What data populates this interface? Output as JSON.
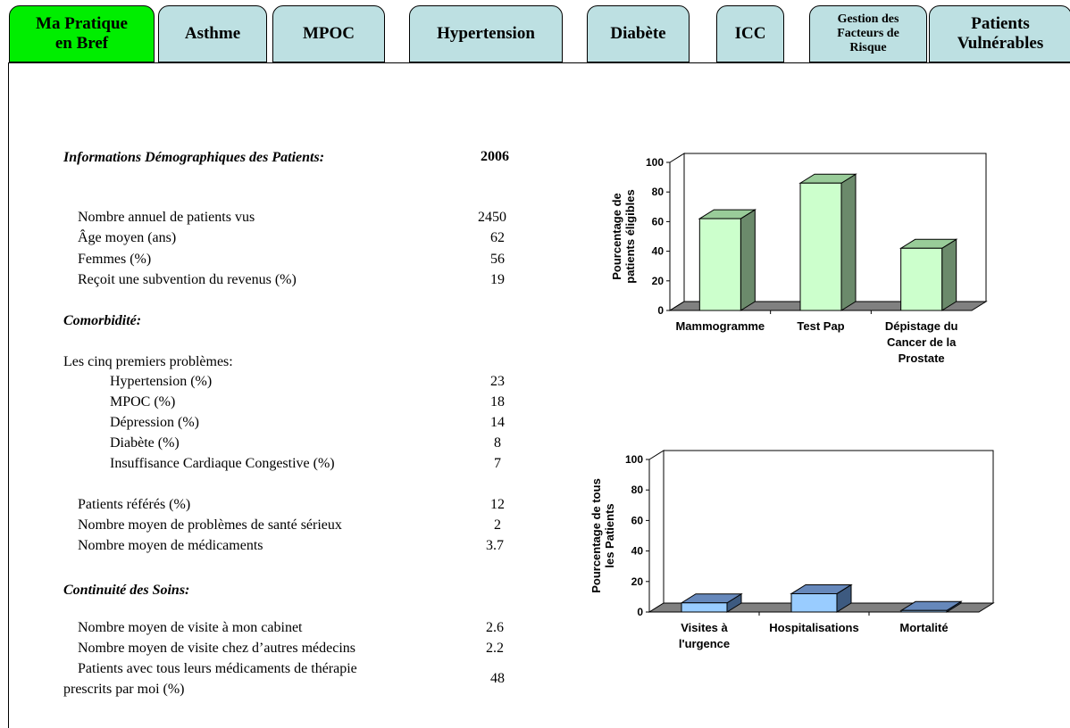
{
  "tabs": [
    {
      "label": "Ma Pratique en Bref",
      "active": true
    },
    {
      "label": "Asthme"
    },
    {
      "label": "MPOC"
    },
    {
      "label": "Hypertension"
    },
    {
      "label": "Diabète"
    },
    {
      "label": "ICC"
    },
    {
      "label": "Gestion des Facteurs de Risque"
    },
    {
      "label": "Patients Vulnérables"
    }
  ],
  "demographics": {
    "title": "Informations Démographiques des Patients:",
    "year": "2006",
    "rows": [
      {
        "label": "Nombre annuel de patients vus",
        "value": "2450"
      },
      {
        "label": "Âge moyen (ans)",
        "value": "62"
      },
      {
        "label": "Femmes (%)",
        "value": "56"
      },
      {
        "label": "Reçoit une subvention du revenus (%)",
        "value": "19"
      }
    ]
  },
  "comorbidity": {
    "title": "Comorbidité:",
    "intro": "Les cinq premiers problèmes:",
    "rows": [
      {
        "label": "Hypertension (%)",
        "value": "23"
      },
      {
        "label": "MPOC (%)",
        "value": "18"
      },
      {
        "label": "Dépression (%)",
        "value": "14"
      },
      {
        "label": "Diabète (%)",
        "value": "8"
      },
      {
        "label": "Insuffisance Cardiaque Congestive (%)",
        "value": "7"
      }
    ],
    "extra": [
      {
        "label": "Patients référés (%)",
        "value": "12"
      },
      {
        "label": "Nombre moyen de problèmes de santé sérieux",
        "value": "2"
      },
      {
        "label": "Nombre moyen de médicaments",
        "value": "3.7"
      }
    ]
  },
  "continuity": {
    "title": "Continuité des Soins:",
    "rows": [
      {
        "label": "Nombre moyen de visite à mon cabinet",
        "value": "2.6"
      },
      {
        "label": "Nombre moyen de visite chez d’autres médecins",
        "value": "2.2"
      },
      {
        "label_line1": "Patients avec tous leurs médicaments de thérapie",
        "label_line2": "prescrits par moi (%)",
        "value": "48"
      }
    ]
  },
  "colors": {
    "tab": "#bde0e2",
    "tab_active": "#00ee00",
    "bar1_front": "#ccffcc",
    "bar1_side": "#6b8a6b",
    "bar1_top": "#99cc99",
    "bar2_front": "#99ccff",
    "bar2_side": "#3d5a80",
    "bar2_top": "#6688bb",
    "floor": "#808080"
  },
  "chart_data": [
    {
      "type": "bar",
      "categories": [
        [
          "Mammogramme"
        ],
        [
          "Test Pap"
        ],
        [
          "Dépistage du",
          "Cancer de la",
          "Prostate"
        ]
      ],
      "values": [
        62,
        86,
        42
      ],
      "ylabel": [
        "Pourcentage de",
        "patients éligibles"
      ],
      "ylim": [
        0,
        100
      ],
      "yticks": [
        0,
        20,
        40,
        60,
        80,
        100
      ]
    },
    {
      "type": "bar",
      "categories": [
        [
          "Visites à",
          "l'urgence"
        ],
        [
          "Hospitalisations"
        ],
        [
          "Mortalité"
        ]
      ],
      "values": [
        6,
        12,
        1
      ],
      "ylabel": [
        "Pourcentage de tous",
        "les Patients"
      ],
      "ylim": [
        0,
        100
      ],
      "yticks": [
        0,
        20,
        40,
        60,
        80,
        100
      ]
    }
  ]
}
